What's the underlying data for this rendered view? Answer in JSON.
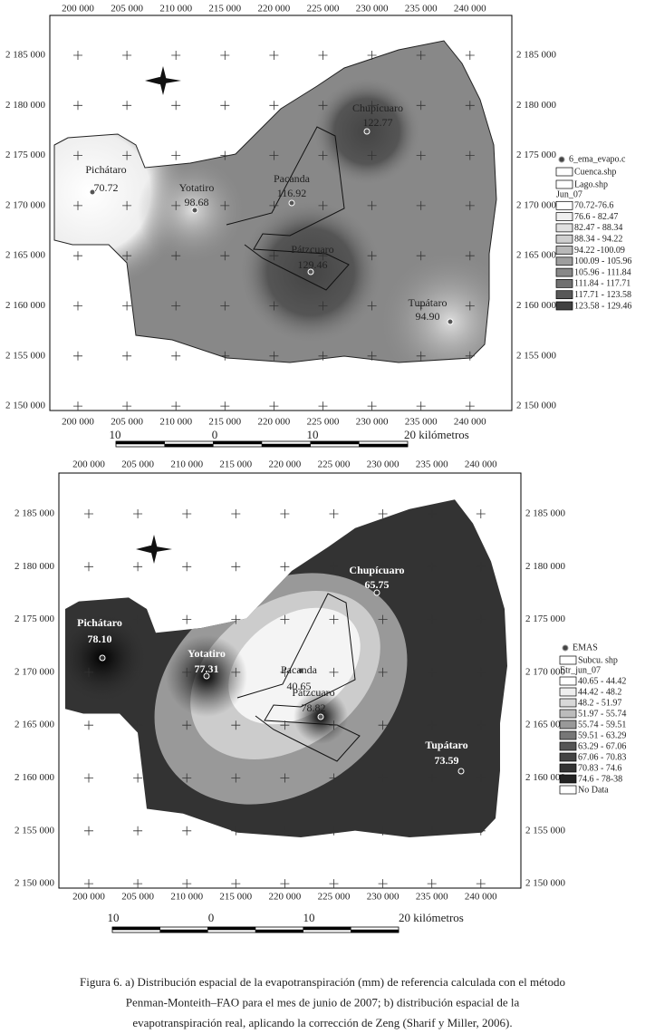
{
  "maps": [
    {
      "xticks": [
        "200 000",
        "205 000",
        "210 000",
        "215 000",
        "220 000",
        "225 000",
        "230 000",
        "235 000",
        "240 000"
      ],
      "yticks": [
        "2 185 000",
        "2 180 000",
        "2 175 000",
        "2 170 000",
        "2 165 000",
        "2 160 000",
        "2 155 000",
        "2 150 000"
      ],
      "stations": [
        {
          "name": "Pichátaro",
          "value": "70.72"
        },
        {
          "name": "Yotatiro",
          "value": "98.68"
        },
        {
          "name": "Pacanda",
          "value": "116.92"
        },
        {
          "name": "Chupícuaro",
          "value": "122.77"
        },
        {
          "name": "Pátzcuaro",
          "value": "129.46"
        },
        {
          "name": "Tupátaro",
          "value": "94.90"
        }
      ],
      "legend": {
        "layers": [
          "6_ema_evapo.c",
          "Cuenca.shp",
          "Lago.shp"
        ],
        "title": "Jun_07",
        "classes": [
          "70.72-76.6",
          "76.6 - 82.47",
          "82.47 - 88.34",
          "88.34 - 94.22",
          "94.22 -100.09",
          "100.09 - 105.96",
          "105.96 - 111.84",
          "111.84 - 117.71",
          "117.71 - 123.58",
          "123.58 - 129.46"
        ]
      },
      "scale": [
        "10",
        "0",
        "10",
        "20 kilómetros"
      ]
    },
    {
      "xticks": [
        "200 000",
        "205 000",
        "210 000",
        "215 000",
        "220 000",
        "225 000",
        "230 000",
        "235 000",
        "240 000"
      ],
      "yticks": [
        "2 185 000",
        "2 180 000",
        "2 175 000",
        "2 170 000",
        "2 165 000",
        "2 160 000",
        "2 155 000",
        "2 150 000"
      ],
      "stations": [
        {
          "name": "Pichátaro",
          "value": "78.10"
        },
        {
          "name": "Yotatiro",
          "value": "77.31"
        },
        {
          "name": "Pacanda",
          "value": "40.65"
        },
        {
          "name": "Chupícuaro",
          "value": "65.75"
        },
        {
          "name": "Pátzcuaro",
          "value": "78.82"
        },
        {
          "name": "Tupátaro",
          "value": "73.59"
        }
      ],
      "legend": {
        "layers": [
          "EMAS",
          "Subcu. shp"
        ],
        "title": "Etr_jun_07",
        "classes": [
          "40.65 - 44.42",
          "44.42 - 48.2",
          "48.2 - 51.97",
          "51.97 - 55.74",
          "55.74 - 59.51",
          "59.51 - 63.29",
          "63.29 - 67.06",
          "67.06 - 70.83",
          "70.83 - 74.6",
          "74.6 - 78-38",
          "No Data"
        ]
      },
      "scale": [
        "10",
        "0",
        "10",
        "20 kilómetros"
      ]
    }
  ],
  "caption": [
    "Figura 6. a) Distribución espacial de la evapotranspiración (mm) de referencia calculada con el método",
    "Penman-Monteith–FAO para el mes de junio de 2007; b) distribución espacial de la",
    "evapotranspiración real, aplicando la corrección de Zeng (Sharif y Miller, 2006)."
  ]
}
